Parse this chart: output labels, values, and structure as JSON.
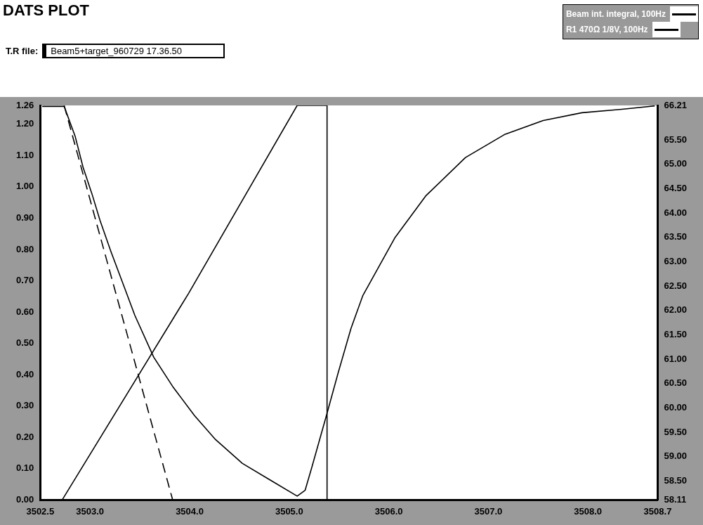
{
  "chart_data": {
    "type": "line",
    "title": "DATS PLOT",
    "subtitle": "T.R file: Beam5+target_960729 17.36.50",
    "legend": "top right",
    "grid": false,
    "marker": "none",
    "xlim": [
      3502.5,
      3508.7
    ],
    "xticks": [
      {
        "value": 3502.5,
        "label": "3502.5"
      },
      {
        "value": 3503,
        "label": "3503.0"
      },
      {
        "value": 3504,
        "label": "3504.0"
      },
      {
        "value": 3505,
        "label": "3505.0"
      },
      {
        "value": 3506,
        "label": "3506.0"
      },
      {
        "value": 3507,
        "label": "3507.0"
      },
      {
        "value": 3508,
        "label": "3508.0"
      },
      {
        "value": 3508.7,
        "label": "3508.7"
      }
    ],
    "ylim": [
      0,
      1.26
    ],
    "yticks": [
      {
        "value": 0,
        "label": "0.00"
      },
      {
        "value": 0.1,
        "label": "0.10"
      },
      {
        "value": 0.2,
        "label": "0.20"
      },
      {
        "value": 0.3,
        "label": "0.30"
      },
      {
        "value": 0.4,
        "label": "0.40"
      },
      {
        "value": 0.5,
        "label": "0.50"
      },
      {
        "value": 0.6,
        "label": "0.60"
      },
      {
        "value": 0.7,
        "label": "0.70"
      },
      {
        "value": 0.8,
        "label": "0.80"
      },
      {
        "value": 0.9,
        "label": "0.90"
      },
      {
        "value": 1,
        "label": "1.00"
      },
      {
        "value": 1.1,
        "label": "1.10"
      },
      {
        "value": 1.2,
        "label": "1.20"
      },
      {
        "value": 1.26,
        "label": "1.26"
      }
    ],
    "y2lim": [
      58.11,
      66.21
    ],
    "y2ticks": [
      {
        "value": 58.11,
        "label": "58.11"
      },
      {
        "value": 58.5,
        "label": "58.50"
      },
      {
        "value": 59,
        "label": "59.00"
      },
      {
        "value": 59.5,
        "label": "59.50"
      },
      {
        "value": 60,
        "label": "60.00"
      },
      {
        "value": 60.5,
        "label": "60.50"
      },
      {
        "value": 61,
        "label": "61.00"
      },
      {
        "value": 61.5,
        "label": "61.50"
      },
      {
        "value": 62,
        "label": "62.00"
      },
      {
        "value": 62.5,
        "label": "62.50"
      },
      {
        "value": 63,
        "label": "63.00"
      },
      {
        "value": 63.5,
        "label": "63.50"
      },
      {
        "value": 64,
        "label": "64.00"
      },
      {
        "value": 64.5,
        "label": "64.50"
      },
      {
        "value": 65,
        "label": "65.00"
      },
      {
        "value": 65.5,
        "label": "65.50"
      },
      {
        "value": 66.21,
        "label": "66.21"
      }
    ],
    "series": [
      {
        "name": "Beam int. integral, 100Hz",
        "color": "#000000",
        "x": [
          3502.52,
          3502.72,
          3503.99,
          3505.08,
          3505.38,
          3505.38,
          3508.7
        ],
        "values": [
          0,
          0,
          0.66,
          1.26,
          1.26,
          0,
          0
        ]
      },
      {
        "name": "R1 470Ω 1/8V, 100Hz",
        "color": "#000000",
        "axis": "y2",
        "x": [
          3502.52,
          3502.74,
          3502.85,
          3502.93,
          3503.02,
          3503.1,
          3503.21,
          3503.32,
          3503.45,
          3503.64,
          3503.83,
          3504.05,
          3504.26,
          3504.53,
          3504.8,
          3505.08,
          3505.16,
          3505.23,
          3505.38,
          3505.49,
          3505.62,
          3505.74,
          3506.06,
          3506.37,
          3506.77,
          3507.16,
          3507.55,
          3507.94,
          3508.34,
          3508.67
        ],
        "values": [
          66.19,
          66.19,
          65.58,
          64.94,
          64.39,
          63.85,
          63.21,
          62.61,
          61.9,
          61.04,
          60.44,
          59.84,
          59.35,
          58.86,
          58.53,
          58.19,
          58.31,
          58.8,
          59.89,
          60.71,
          61.63,
          62.31,
          63.49,
          64.35,
          65.14,
          65.61,
          65.9,
          66.06,
          66.13,
          66.2
        ]
      },
      {
        "color": "#000000",
        "line_style": "dashed",
        "x": [
          3502.74,
          3503.83
        ],
        "values": [
          1.26,
          0
        ]
      }
    ]
  }
}
